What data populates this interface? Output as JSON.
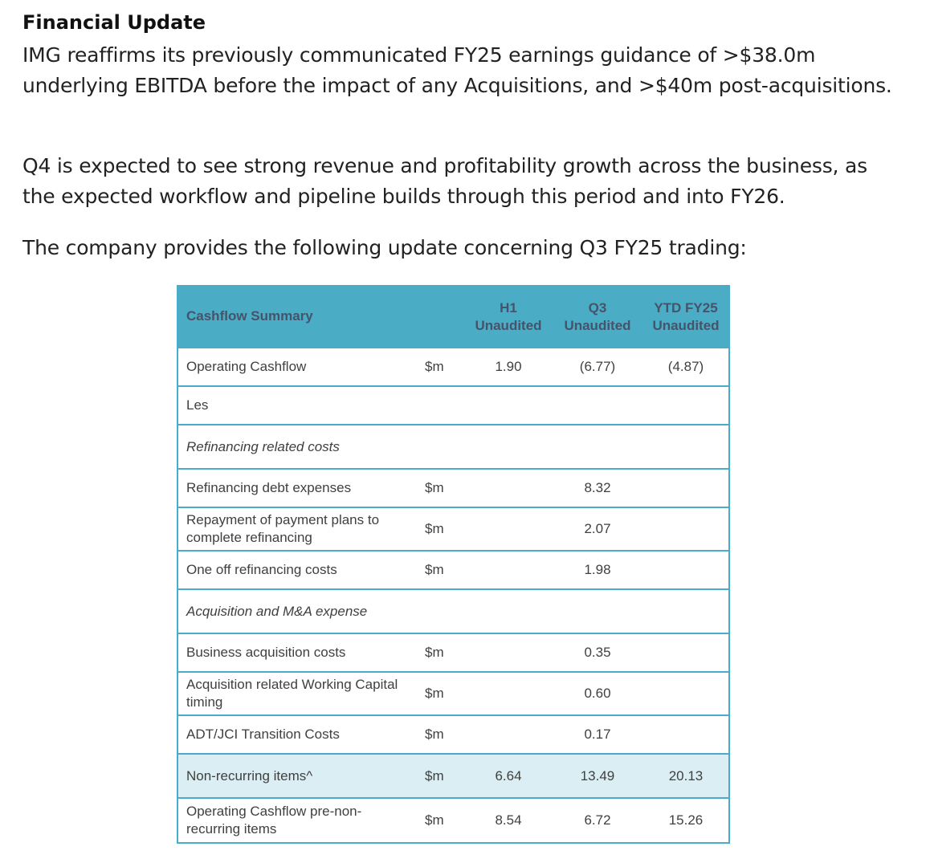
{
  "heading": "Financial Update",
  "paragraphs": [
    "IMG reaffirms its previously communicated FY25 earnings guidance of >$38.0m underlying EBITDA before the impact of any Acquisitions, and >$40m post-acquisitions.",
    "Q4 is expected to see strong revenue and profitability growth across the business, as the expected workflow and pipeline builds through this period and into FY26.",
    "The company provides the following update concerning Q3 FY25 trading:"
  ],
  "table": {
    "title": "Cashflow Summary",
    "columns": [
      {
        "line1": "H1",
        "line2": "Unaudited"
      },
      {
        "line1": "Q3",
        "line2": "Unaudited"
      },
      {
        "line1": "YTD FY25",
        "line2": "Unaudited"
      }
    ],
    "rows": [
      {
        "label": "Operating Cashflow",
        "unit": "$m",
        "h1": "1.90",
        "q3": "(6.77)",
        "ytd": "(4.87)"
      },
      {
        "label": "Les",
        "unit": "",
        "h1": "",
        "q3": "",
        "ytd": ""
      },
      {
        "label": "Refinancing related costs",
        "unit": "",
        "h1": "",
        "q3": "",
        "ytd": ""
      },
      {
        "label": "Refinancing debt expenses",
        "unit": "$m",
        "h1": "",
        "q3": "8.32",
        "ytd": ""
      },
      {
        "label": "Repayment of payment plans to complete refinancing",
        "unit": "$m",
        "h1": "",
        "q3": "2.07",
        "ytd": ""
      },
      {
        "label": "One off refinancing costs",
        "unit": "$m",
        "h1": "",
        "q3": "1.98",
        "ytd": ""
      },
      {
        "label": "Acquisition and M&A expense",
        "unit": "",
        "h1": "",
        "q3": "",
        "ytd": ""
      },
      {
        "label": "Business acquisition costs",
        "unit": "$m",
        "h1": "",
        "q3": "0.35",
        "ytd": ""
      },
      {
        "label": "Acquisition related Working Capital timing",
        "unit": "$m",
        "h1": "",
        "q3": "0.60",
        "ytd": ""
      },
      {
        "label": "ADT/JCI Transition Costs",
        "unit": "$m",
        "h1": "",
        "q3": "0.17",
        "ytd": ""
      },
      {
        "label": "Non-recurring items^",
        "unit": "$m",
        "h1": "6.64",
        "q3": "13.49",
        "ytd": "20.13"
      },
      {
        "label": "Operating Cashflow pre-non-recurring items",
        "unit": "$m",
        "h1": "8.54",
        "q3": "6.72",
        "ytd": "15.26"
      }
    ]
  }
}
